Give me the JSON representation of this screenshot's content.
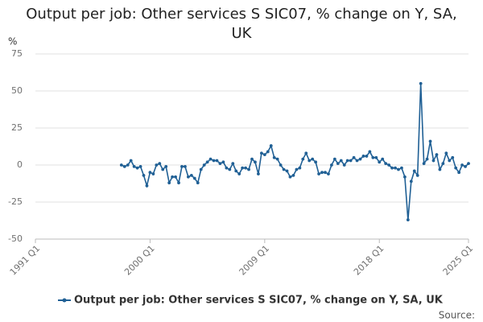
{
  "chart_data": {
    "type": "line",
    "title": "Output per job: Other services S SIC07, % change on Y, SA, UK",
    "y_label": "%",
    "source": "Source:",
    "xlim": [
      1991,
      2025
    ],
    "xticks": [
      {
        "value": 1991,
        "label": "1991 Q1"
      },
      {
        "value": 2000,
        "label": "2000 Q1"
      },
      {
        "value": 2009,
        "label": "2009 Q1"
      },
      {
        "value": 2018,
        "label": "2018 Q1"
      },
      {
        "value": 2025,
        "label": "2025 Q1"
      }
    ],
    "ylim": [
      -50,
      75
    ],
    "yticks": [
      -50,
      -25,
      0,
      25,
      50,
      75
    ],
    "grid": true,
    "legend": "bottom",
    "series": [
      {
        "name": "Output per job: Other services S SIC07, % change on Y, SA, UK",
        "color": "#206095",
        "x": [
          1997.75,
          1998,
          1998.25,
          1998.5,
          1998.75,
          1999,
          1999.25,
          1999.5,
          1999.75,
          2000,
          2000.25,
          2000.5,
          2000.75,
          2001,
          2001.25,
          2001.5,
          2001.75,
          2002,
          2002.25,
          2002.5,
          2002.75,
          2003,
          2003.25,
          2003.5,
          2003.75,
          2004,
          2004.25,
          2004.5,
          2004.75,
          2005,
          2005.25,
          2005.5,
          2005.75,
          2006,
          2006.25,
          2006.5,
          2006.75,
          2007,
          2007.25,
          2007.5,
          2007.75,
          2008,
          2008.25,
          2008.5,
          2008.75,
          2009,
          2009.25,
          2009.5,
          2009.75,
          2010,
          2010.25,
          2010.5,
          2010.75,
          2011,
          2011.25,
          2011.5,
          2011.75,
          2012,
          2012.25,
          2012.5,
          2012.75,
          2013,
          2013.25,
          2013.5,
          2013.75,
          2014,
          2014.25,
          2014.5,
          2014.75,
          2015,
          2015.25,
          2015.5,
          2015.75,
          2016,
          2016.25,
          2016.5,
          2016.75,
          2017,
          2017.25,
          2017.5,
          2017.75,
          2018,
          2018.25,
          2018.5,
          2018.75,
          2019,
          2019.25,
          2019.5,
          2019.75,
          2020,
          2020.25,
          2020.5,
          2020.75,
          2021,
          2021.25,
          2021.5,
          2021.75,
          2022,
          2022.25,
          2022.5,
          2022.75,
          2023,
          2023.25,
          2023.5,
          2023.75,
          2024,
          2024.25,
          2024.5,
          2024.75,
          2025
        ],
        "values": [
          0,
          -1,
          0,
          3,
          -1,
          -2,
          -1,
          -7,
          -14,
          -5,
          -6,
          0,
          1,
          -3,
          -1,
          -12,
          -8,
          -8,
          -12,
          -1,
          -1,
          -8,
          -7,
          -9,
          -12,
          -3,
          0,
          2,
          4,
          3,
          3,
          1,
          2,
          -2,
          -3,
          1,
          -4,
          -6,
          -2,
          -2,
          -3,
          4,
          2,
          -6,
          8,
          7,
          9,
          13,
          5,
          4,
          0,
          -3,
          -4,
          -8,
          -7,
          -3,
          -2,
          4,
          8,
          3,
          4,
          2,
          -6,
          -5,
          -5,
          -6,
          0,
          4,
          1,
          3,
          0,
          3,
          3,
          5,
          3,
          4,
          6,
          6,
          9,
          5,
          5,
          2,
          4,
          1,
          0,
          -2,
          -2,
          -3,
          -2,
          -8,
          -37,
          -11,
          -4,
          -7,
          55,
          1,
          4,
          16,
          3,
          7,
          -3,
          1,
          8,
          3,
          5,
          -2,
          -5,
          0,
          -1,
          1
        ]
      }
    ]
  }
}
